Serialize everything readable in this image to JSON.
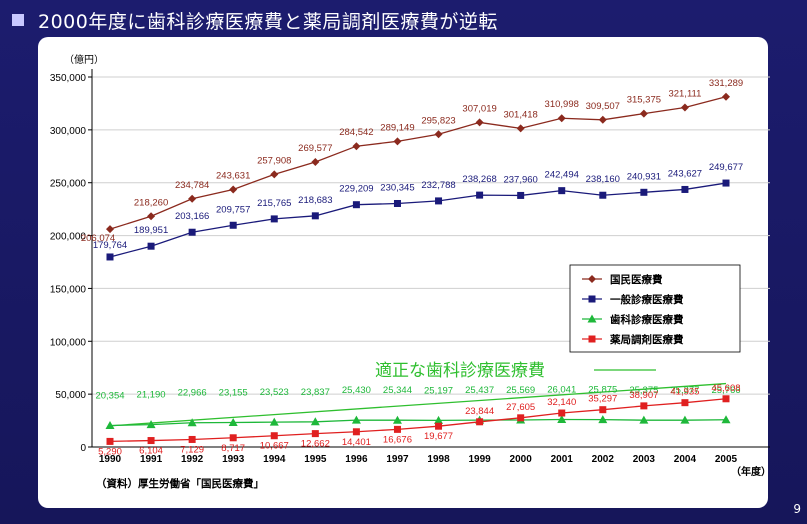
{
  "slide": {
    "title": "2000年度に歯科診療医療費と薬局調剤医療費が逆転",
    "page_number": "9",
    "source_note": "（資料）厚生労働省「国民医療費」"
  },
  "chart_data": {
    "type": "line",
    "y_unit_label": "（億円）",
    "x_unit_label": "（年度）",
    "ylim": [
      0,
      350000
    ],
    "yticks": [
      0,
      50000,
      100000,
      150000,
      200000,
      250000,
      300000,
      350000
    ],
    "ytick_labels": [
      "0",
      "50,000",
      "100,000",
      "150,000",
      "200,000",
      "250,000",
      "300,000",
      "350,000"
    ],
    "x": [
      "1990",
      "1991",
      "1992",
      "1993",
      "1994",
      "1995",
      "1996",
      "1997",
      "1998",
      "1999",
      "2000",
      "2001",
      "2002",
      "2003",
      "2004",
      "2005"
    ],
    "grid": "horizontal",
    "legend_position": "right-middle",
    "series": [
      {
        "name": "国民医療費",
        "color": "#8b2a1e",
        "marker": "diamond",
        "values": [
          206074,
          218260,
          234784,
          243631,
          257908,
          269577,
          284542,
          289149,
          295823,
          307019,
          301418,
          310998,
          309507,
          315375,
          321111,
          331289
        ],
        "labels": [
          "206,074",
          "218,260",
          "234,784",
          "243,631",
          "257,908",
          "269,577",
          "284,542",
          "289,149",
          "295,823",
          "307,019",
          "301,418",
          "310,998",
          "309,507",
          "315,375",
          "321,111",
          "331,289"
        ]
      },
      {
        "name": "一般診療医療費",
        "color": "#1a1a7a",
        "marker": "square",
        "values": [
          179764,
          189951,
          203166,
          209757,
          215765,
          218683,
          229209,
          230345,
          232788,
          238268,
          237960,
          242494,
          238160,
          240931,
          243627,
          249677
        ],
        "labels": [
          "179,764",
          "189,951",
          "203,166",
          "209,757",
          "215,765",
          "218,683",
          "229,209",
          "230,345",
          "232,788",
          "238,268",
          "237,960",
          "242,494",
          "238,160",
          "240,931",
          "243,627",
          "249,677"
        ]
      },
      {
        "name": "歯科診療医療費",
        "color": "#1eb83a",
        "marker": "triangle",
        "values": [
          20354,
          21190,
          22966,
          23155,
          23523,
          23837,
          25430,
          25344,
          25197,
          25437,
          25569,
          26041,
          25875,
          25375,
          25377,
          25766
        ],
        "labels": [
          "20,354",
          "21,190",
          "22,966",
          "23,155",
          "23,523",
          "23,837",
          "25,430",
          "25,344",
          "25,197",
          "25,437",
          "25,569",
          "26,041",
          "25,875",
          "25,375",
          "25,377",
          "25,766"
        ]
      },
      {
        "name": "薬局調剤医療費",
        "color": "#e02020",
        "marker": "square",
        "values": [
          5290,
          6104,
          7129,
          8717,
          10667,
          12662,
          14401,
          16676,
          19677,
          23844,
          27605,
          32140,
          35297,
          38907,
          41935,
          45608
        ],
        "labels": [
          "5,290",
          "6,104",
          "7,129",
          "8,717",
          "10,667",
          "12,662",
          "14,401",
          "16,676",
          "19,677",
          "23,844",
          "27,605",
          "32,140",
          "35,297",
          "38,907",
          "41,935",
          "45,608"
        ]
      }
    ],
    "annotation": {
      "text": "適正な歯科診療医療費",
      "color": "#2fbf2f",
      "line_from": [
        "1990",
        20000
      ],
      "line_to": [
        "2005",
        60000
      ]
    }
  }
}
